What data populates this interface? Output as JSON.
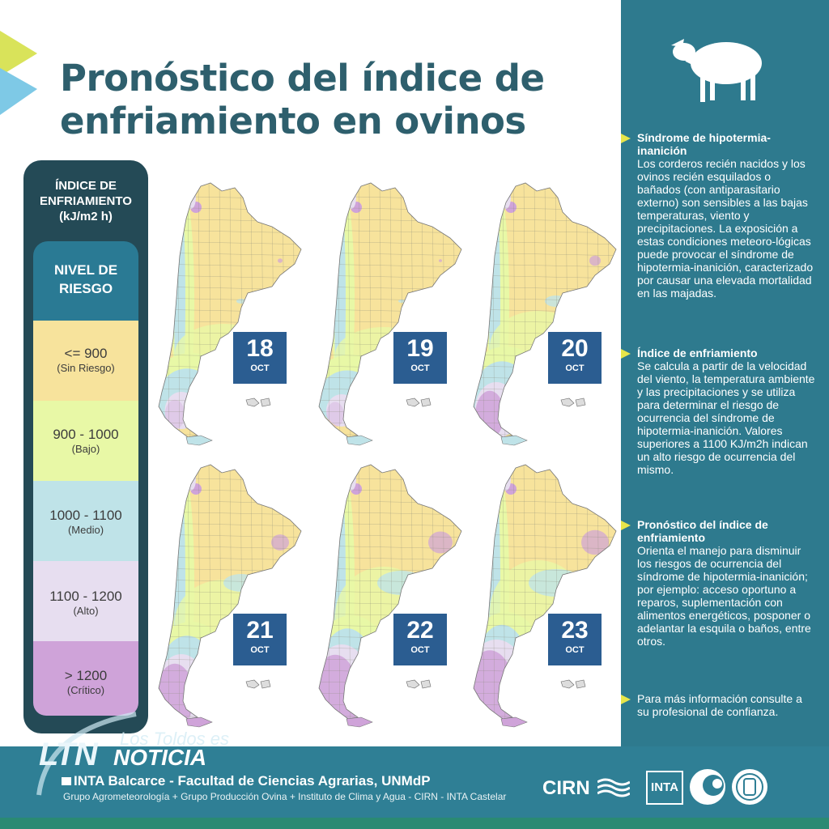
{
  "title": {
    "line1": "Pronóstico del índice de",
    "line2": "enfriamiento en ovinos"
  },
  "legend": {
    "title_lines": [
      "ÍNDICE DE",
      "ENFRIAMIENTO",
      "(kJ/m2 h)"
    ],
    "header_lines": [
      "NIVEL DE",
      "RIESGO"
    ],
    "bands": [
      {
        "range": "<= 900",
        "level": "(Sin Riesgo)",
        "color": "#f7e39c"
      },
      {
        "range": "900 - 1000",
        "level": "(Bajo)",
        "color": "#e8f8a6"
      },
      {
        "range": "1000 - 1100",
        "level": "(Medio)",
        "color": "#bfe3e8"
      },
      {
        "range": "1100 - 1200",
        "level": "(Alto)",
        "color": "#e7def0"
      },
      {
        "range": "> 1200",
        "level": "(Crítico)",
        "color": "#cfa3d9"
      }
    ]
  },
  "maps": [
    {
      "day": "18",
      "month": "OCT"
    },
    {
      "day": "19",
      "month": "OCT"
    },
    {
      "day": "20",
      "month": "OCT"
    },
    {
      "day": "21",
      "month": "OCT"
    },
    {
      "day": "22",
      "month": "OCT"
    },
    {
      "day": "23",
      "month": "OCT"
    }
  ],
  "sidebar": {
    "icon": "sheep-icon",
    "items": [
      {
        "head": "Síndrome de hipotermia-inanición",
        "body": "Los corderos recién nacidos y los ovinos recién esquilados o bañados (con antiparasitario externo) son sensibles a las bajas temperaturas, viento y precipitaciones. La exposición a estas condiciones meteoro-lógicas puede provocar el síndrome de hipotermia-inanición, caracterizado por causar una elevada mortalidad en las majadas."
      },
      {
        "head": "Índice de enfriamiento",
        "body": "Se calcula a partir de la velocidad del viento, la temperatura ambiente y las precipitaciones y se utiliza para determinar el riesgo de ocurrencia del síndrome de hipotermia-inanición. Valores superiores a 1100 KJ/m2h indican un alto riesgo de ocurrencia del mismo."
      },
      {
        "head": "Pronóstico del índice de enfriamiento",
        "body": "Orienta el manejo para disminuir los riesgos de ocurrencia del síndrome de hipotermia-inanición; por ejemplo: acceso oportuno a reparos, suplementación con alimentos energéticos, posponer o adelantar la esquila o baños, entre otros."
      },
      {
        "head": "",
        "body": "Para más información consulte a su profesional de confianza."
      }
    ]
  },
  "footer": {
    "main": "INTA Balcarce - Facultad de Ciencias Agrarias, UNMdP",
    "sub": "Grupo Agrometeorología + Grupo Producción Ovina + Instituto de Clima y Agua - CIRN - INTA Castelar",
    "logo_cirn": "CIRN",
    "logo_inta": "INTA"
  },
  "watermark": {
    "small": "Los Toldos es",
    "ltn": "LTN",
    "noticia": "NOTICIA"
  },
  "colors": {
    "accent_yellow": "#e7e54a",
    "title": "#2e5f6d",
    "sidebar_bg": "#2e7a8e",
    "date_box": "#2b5d91"
  }
}
